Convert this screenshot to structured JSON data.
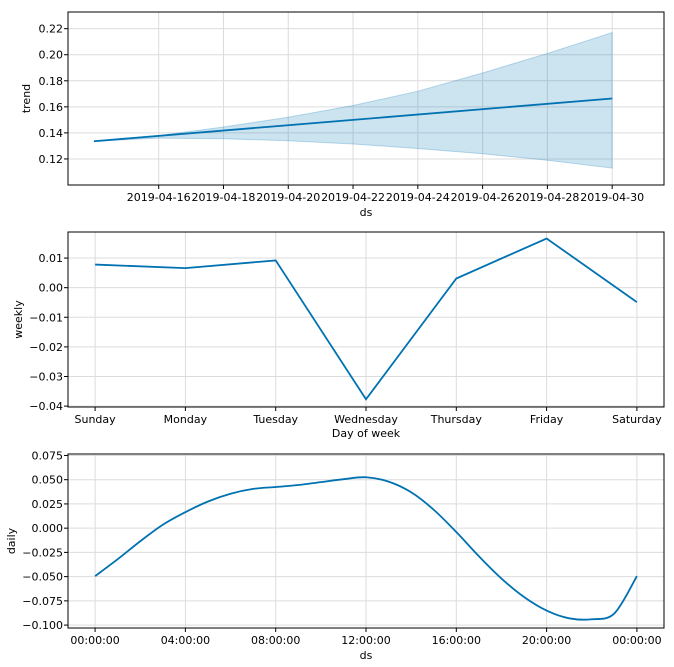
{
  "colors": {
    "line": "#0072b2",
    "band": "#0072b2",
    "grid": "#dcdcdc"
  },
  "chart_data": [
    {
      "type": "line",
      "ylabel": "trend",
      "xlabel": "ds",
      "grid": true,
      "x_start": "2019-04-14",
      "x_end": "2019-04-30",
      "xlim": [
        "2019-04-13.2",
        "2019-05-01.6"
      ],
      "ylim": [
        0.1,
        0.2328
      ],
      "yticks": [
        0.12,
        0.14,
        0.16,
        0.18,
        0.2,
        0.22
      ],
      "ytick_labels": [
        "0.12",
        "0.14",
        "0.16",
        "0.18",
        "0.20",
        "0.22"
      ],
      "xtick_dates": [
        "2019-04-16",
        "2019-04-18",
        "2019-04-20",
        "2019-04-22",
        "2019-04-24",
        "2019-04-26",
        "2019-04-28",
        "2019-04-30"
      ],
      "xtick_labels": [
        "2019-04-16",
        "2019-04-18",
        "2019-04-20",
        "2019-04-22",
        "2019-04-24",
        "2019-04-26",
        "2019-04-28",
        "2019-04-30"
      ],
      "series": [
        {
          "x": [
            "2019-04-14",
            "2019-04-30"
          ],
          "values": [
            0.1336,
            0.1664
          ]
        }
      ],
      "band": {
        "x": [
          "2019-04-14",
          "2019-04-16",
          "2019-04-18",
          "2019-04-20",
          "2019-04-22",
          "2019-04-24",
          "2019-04-26",
          "2019-04-28",
          "2019-04-30"
        ],
        "upper": [
          0.1336,
          0.138,
          0.1445,
          0.152,
          0.161,
          0.172,
          0.186,
          0.201,
          0.217
        ],
        "lower": [
          0.1336,
          0.136,
          0.1355,
          0.134,
          0.1315,
          0.128,
          0.124,
          0.119,
          0.113
        ]
      }
    },
    {
      "type": "line",
      "ylabel": "weekly",
      "xlabel": "Day of week",
      "grid": true,
      "categories": [
        "Sunday",
        "Monday",
        "Tuesday",
        "Wednesday",
        "Thursday",
        "Friday",
        "Saturday"
      ],
      "values": [
        0.0078,
        0.0066,
        0.0092,
        -0.0377,
        0.0031,
        0.0166,
        -0.0049
      ],
      "ylim": [
        -0.0403,
        0.0188
      ],
      "yticks": [
        -0.04,
        -0.03,
        -0.02,
        -0.01,
        0.0,
        0.01
      ],
      "ytick_labels": [
        "−0.04",
        "−0.03",
        "−0.02",
        "−0.01",
        "0.00",
        "0.01"
      ]
    },
    {
      "type": "line",
      "ylabel": "daily",
      "xlabel": "ds",
      "grid": true,
      "xlim": [
        -1.2,
        25.2
      ],
      "xticks": [
        0,
        4,
        8,
        12,
        16,
        20,
        24
      ],
      "xtick_labels": [
        "00:00:00",
        "04:00:00",
        "08:00:00",
        "12:00:00",
        "16:00:00",
        "20:00:00",
        "00:00:00"
      ],
      "ylim": [
        -0.103,
        0.0765
      ],
      "yticks": [
        -0.1,
        -0.075,
        -0.05,
        -0.025,
        0.0,
        0.025,
        0.05,
        0.075
      ],
      "ytick_labels": [
        "−0.100",
        "−0.075",
        "−0.050",
        "−0.025",
        "0.000",
        "0.025",
        "0.050",
        "0.075"
      ],
      "series": [
        {
          "x": [
            0,
            1,
            2,
            3,
            4,
            5,
            6,
            7,
            8,
            9,
            10,
            11,
            12,
            13,
            14,
            15,
            16,
            17,
            18,
            19,
            20,
            21,
            22,
            23,
            24
          ],
          "values": [
            -0.0495,
            -0.032,
            -0.0135,
            0.0035,
            0.0165,
            0.0275,
            0.0355,
            0.0405,
            0.0425,
            0.0445,
            0.0475,
            0.0505,
            0.0525,
            0.048,
            0.037,
            0.019,
            -0.004,
            -0.029,
            -0.052,
            -0.071,
            -0.085,
            -0.093,
            -0.094,
            -0.088,
            -0.0495
          ]
        }
      ]
    }
  ]
}
